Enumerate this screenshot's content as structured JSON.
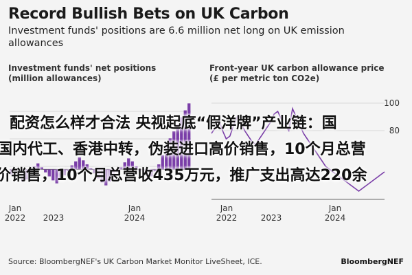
{
  "header": {
    "title": "Record Bullish Bets on UK Carbon",
    "subtitle": "Investment funds' positions are 6.6 million net long on UK emission allowances"
  },
  "chart_data": [
    {
      "type": "bar",
      "title": "Investment funds' net positions (million allowances)",
      "x_ticks": [
        {
          "label": "Jan",
          "sublabel": "2022"
        },
        {
          "label": "",
          "sublabel": "2023"
        },
        {
          "label": "Jan",
          "sublabel": "2024"
        }
      ],
      "values": [
        -0.5,
        -0.8,
        -0.6,
        -1.2,
        -1.0,
        -0.4,
        0.3,
        0.6,
        0.2,
        -0.3,
        -0.7,
        -1.1,
        -1.4,
        -1.0,
        -0.6,
        -0.2,
        0.4,
        0.8,
        1.2,
        0.9,
        0.5,
        0.1,
        -0.4,
        -0.9,
        -1.3,
        -1.6,
        -1.2,
        -0.8,
        -0.3,
        0.2,
        0.7,
        1.1,
        0.8,
        0.3,
        -0.2,
        -0.6,
        -1.0,
        -0.7,
        -0.2,
        0.5,
        1.4,
        2.3,
        3.1,
        3.8,
        4.5,
        5.2,
        5.9,
        6.6
      ],
      "ylim": [
        -3,
        8
      ],
      "grid": true,
      "color": "#7a3ea8"
    },
    {
      "type": "line",
      "title": "Front-year UK carbon allowance price (£ per metric ton CO2e)",
      "x_ticks": [
        {
          "label": "Jan",
          "sublabel": "2022"
        },
        {
          "label": "",
          "sublabel": "2023"
        },
        {
          "label": "Jan",
          "sublabel": "2024"
        }
      ],
      "y_ticks": [
        {
          "value": 100,
          "label": "100"
        },
        {
          "value": 80,
          "label": "80"
        }
      ],
      "x": [
        0,
        1,
        2,
        3,
        4,
        5,
        6,
        7,
        8,
        9,
        10,
        11,
        12,
        13,
        14,
        15,
        16,
        17,
        18,
        19,
        20,
        21,
        22,
        23,
        24,
        25,
        26,
        27,
        28,
        29,
        30,
        31,
        32,
        33,
        34,
        35,
        36,
        37,
        38,
        39,
        40,
        41,
        42,
        43,
        44,
        45,
        46,
        47
      ],
      "y": [
        78,
        82,
        88,
        80,
        74,
        76,
        84,
        90,
        86,
        80,
        76,
        72,
        70,
        74,
        78,
        82,
        86,
        92,
        94,
        88,
        84,
        80,
        96,
        90,
        84,
        78,
        74,
        70,
        66,
        62,
        58,
        54,
        52,
        50,
        48,
        46,
        44,
        42,
        40,
        38,
        36,
        38,
        40,
        42,
        44,
        46,
        48,
        50
      ],
      "ylim": [
        30,
        110
      ],
      "grid": true,
      "color": "#7a3ea8"
    }
  ],
  "overlay": {
    "line1": "配资怎么样才合法 央视起底“假洋牌”产业链：国",
    "line2": "国内代工、香港中转，伪装进口高价销售，10个月总营",
    "line3": "价销售，10个月总营收435万元，推广支出高达220余"
  },
  "footer": {
    "source": "Source: BloombergNEF's UK Carbon Market Monitor LiveSheet, ICE.",
    "brand": "BloombergNEF"
  }
}
